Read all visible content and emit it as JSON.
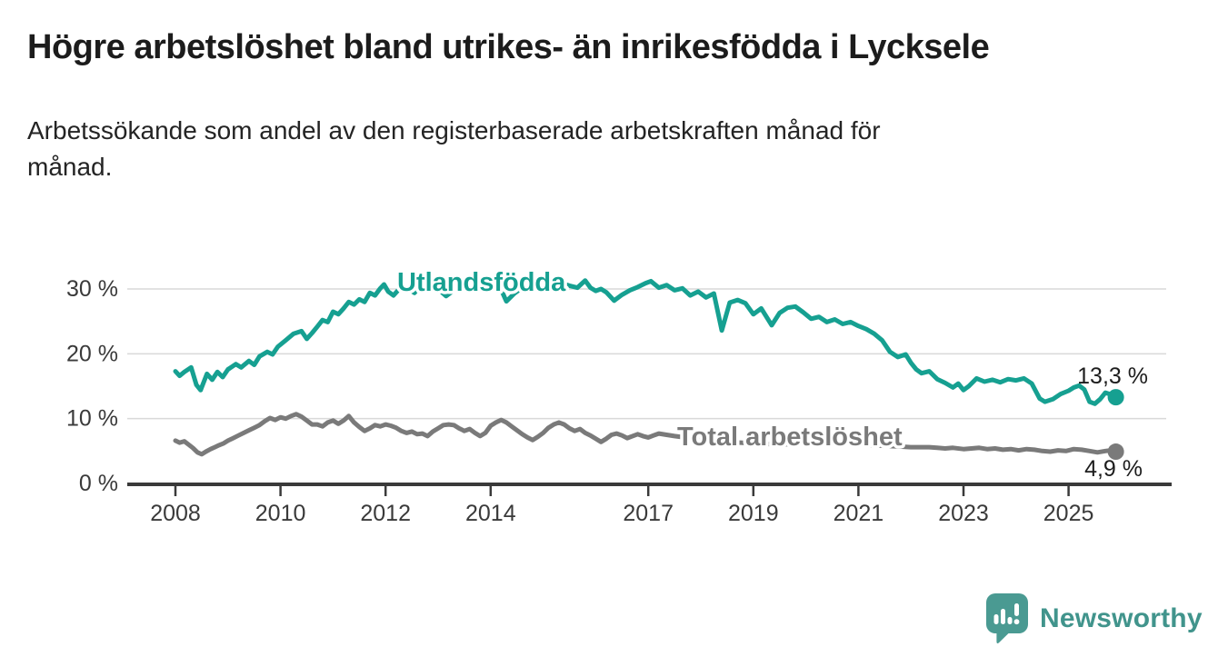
{
  "header": {
    "title": "Högre arbetslöshet bland utrikes- än inrikesfödda i Lycksele",
    "subtitle_lines": [
      "Arbetssökande som andel av den registerbaserade arbetskraften månad för",
      "månad."
    ]
  },
  "footer": {
    "brand": "Newsworthy"
  },
  "colors": {
    "foreign_born_line": "#16a091",
    "total_line": "#7a7a7a",
    "axis": "#3a3a3a",
    "grid": "#d9d9d9",
    "value_label": "#1d1d1d",
    "brand": "#41948c",
    "background": "#ffffff"
  },
  "chart_data": {
    "type": "line",
    "title": "Högre arbetslöshet bland utrikes- än inrikesfödda i Lycksele",
    "subtitle": "Arbetssökande som andel av den registerbaserade arbetskraften månad för månad.",
    "xlabel": "",
    "ylabel": "",
    "grid": "horizontal",
    "x_range": [
      2007.1,
      2026.9
    ],
    "y_range": [
      0,
      35.3
    ],
    "x_ticks": [
      {
        "v": 2008,
        "label": "2008"
      },
      {
        "v": 2010,
        "label": "2010"
      },
      {
        "v": 2012,
        "label": "2012"
      },
      {
        "v": 2014,
        "label": "2014"
      },
      {
        "v": 2017,
        "label": "2017"
      },
      {
        "v": 2019,
        "label": "2019"
      },
      {
        "v": 2021,
        "label": "2021"
      },
      {
        "v": 2023,
        "label": "2023"
      },
      {
        "v": 2025,
        "label": "2025"
      }
    ],
    "y_ticks": [
      {
        "v": 0,
        "label": "0 %"
      },
      {
        "v": 10,
        "label": "10 %"
      },
      {
        "v": 20,
        "label": "20 %"
      },
      {
        "v": 30,
        "label": "30 %"
      }
    ],
    "series": [
      {
        "name": "Utlandsfödda",
        "color": "#16a091",
        "end_value": 13.3,
        "end_label": "13,3 %",
        "points": [
          [
            2008.0,
            17.3
          ],
          [
            2008.08,
            16.6
          ],
          [
            2008.17,
            17.2
          ],
          [
            2008.3,
            17.9
          ],
          [
            2008.4,
            15.2
          ],
          [
            2008.48,
            14.4
          ],
          [
            2008.6,
            16.9
          ],
          [
            2008.7,
            16.0
          ],
          [
            2008.8,
            17.2
          ],
          [
            2008.9,
            16.4
          ],
          [
            2009.0,
            17.6
          ],
          [
            2009.15,
            18.4
          ],
          [
            2009.25,
            17.9
          ],
          [
            2009.4,
            18.9
          ],
          [
            2009.5,
            18.3
          ],
          [
            2009.6,
            19.6
          ],
          [
            2009.75,
            20.3
          ],
          [
            2009.85,
            19.9
          ],
          [
            2009.95,
            21.1
          ],
          [
            2010.1,
            22.1
          ],
          [
            2010.25,
            23.1
          ],
          [
            2010.4,
            23.5
          ],
          [
            2010.5,
            22.3
          ],
          [
            2010.6,
            23.2
          ],
          [
            2010.7,
            24.2
          ],
          [
            2010.8,
            25.2
          ],
          [
            2010.9,
            24.9
          ],
          [
            2011.0,
            26.5
          ],
          [
            2011.1,
            26.1
          ],
          [
            2011.2,
            27.0
          ],
          [
            2011.3,
            28.0
          ],
          [
            2011.4,
            27.6
          ],
          [
            2011.5,
            28.4
          ],
          [
            2011.6,
            28.0
          ],
          [
            2011.7,
            29.4
          ],
          [
            2011.8,
            29.0
          ],
          [
            2011.9,
            30.1
          ],
          [
            2011.97,
            30.7
          ],
          [
            2012.05,
            29.6
          ],
          [
            2012.15,
            29.0
          ],
          [
            2012.25,
            29.9
          ],
          [
            2012.4,
            30.2
          ],
          [
            2012.55,
            29.4
          ],
          [
            2012.7,
            30.9
          ],
          [
            2012.85,
            30.3
          ],
          [
            2013.0,
            30.0
          ],
          [
            2013.15,
            28.9
          ],
          [
            2013.25,
            29.5
          ],
          [
            2013.4,
            30.6
          ],
          [
            2013.55,
            31.0
          ],
          [
            2013.7,
            30.3
          ],
          [
            2013.85,
            29.8
          ],
          [
            2014.0,
            30.4
          ],
          [
            2014.15,
            30.8
          ],
          [
            2014.3,
            28.1
          ],
          [
            2014.45,
            29.3
          ],
          [
            2014.6,
            30.2
          ],
          [
            2014.75,
            30.6
          ],
          [
            2014.9,
            30.1
          ],
          [
            2015.05,
            30.8
          ],
          [
            2015.2,
            30.4
          ],
          [
            2015.35,
            30.9
          ],
          [
            2015.5,
            30.5
          ],
          [
            2015.65,
            30.2
          ],
          [
            2015.8,
            31.3
          ],
          [
            2015.9,
            30.2
          ],
          [
            2016.0,
            29.7
          ],
          [
            2016.1,
            30.0
          ],
          [
            2016.2,
            29.5
          ],
          [
            2016.35,
            28.2
          ],
          [
            2016.5,
            29.1
          ],
          [
            2016.65,
            29.8
          ],
          [
            2016.8,
            30.3
          ],
          [
            2016.95,
            30.9
          ],
          [
            2017.05,
            31.2
          ],
          [
            2017.2,
            30.2
          ],
          [
            2017.35,
            30.6
          ],
          [
            2017.5,
            29.8
          ],
          [
            2017.65,
            30.1
          ],
          [
            2017.8,
            29.0
          ],
          [
            2017.95,
            29.6
          ],
          [
            2018.1,
            28.7
          ],
          [
            2018.25,
            29.3
          ],
          [
            2018.4,
            23.6
          ],
          [
            2018.55,
            27.9
          ],
          [
            2018.7,
            28.3
          ],
          [
            2018.85,
            27.8
          ],
          [
            2019.0,
            26.1
          ],
          [
            2019.15,
            27.0
          ],
          [
            2019.35,
            24.4
          ],
          [
            2019.5,
            26.3
          ],
          [
            2019.65,
            27.1
          ],
          [
            2019.8,
            27.3
          ],
          [
            2019.95,
            26.4
          ],
          [
            2020.1,
            25.4
          ],
          [
            2020.25,
            25.7
          ],
          [
            2020.4,
            24.9
          ],
          [
            2020.55,
            25.3
          ],
          [
            2020.7,
            24.6
          ],
          [
            2020.85,
            24.9
          ],
          [
            2021.0,
            24.3
          ],
          [
            2021.15,
            23.8
          ],
          [
            2021.3,
            23.1
          ],
          [
            2021.45,
            22.1
          ],
          [
            2021.6,
            20.3
          ],
          [
            2021.75,
            19.5
          ],
          [
            2021.9,
            19.9
          ],
          [
            2022.0,
            18.6
          ],
          [
            2022.1,
            17.6
          ],
          [
            2022.2,
            17.0
          ],
          [
            2022.35,
            17.3
          ],
          [
            2022.5,
            16.1
          ],
          [
            2022.65,
            15.5
          ],
          [
            2022.8,
            14.8
          ],
          [
            2022.9,
            15.4
          ],
          [
            2023.0,
            14.4
          ],
          [
            2023.1,
            15.0
          ],
          [
            2023.25,
            16.2
          ],
          [
            2023.4,
            15.7
          ],
          [
            2023.55,
            16.0
          ],
          [
            2023.7,
            15.6
          ],
          [
            2023.85,
            16.1
          ],
          [
            2024.0,
            15.9
          ],
          [
            2024.15,
            16.2
          ],
          [
            2024.3,
            15.4
          ],
          [
            2024.45,
            13.1
          ],
          [
            2024.55,
            12.6
          ],
          [
            2024.7,
            13.0
          ],
          [
            2024.85,
            13.8
          ],
          [
            2025.0,
            14.3
          ],
          [
            2025.1,
            14.8
          ],
          [
            2025.2,
            15.1
          ],
          [
            2025.3,
            14.5
          ],
          [
            2025.4,
            12.6
          ],
          [
            2025.5,
            12.3
          ],
          [
            2025.6,
            13.0
          ],
          [
            2025.7,
            14.0
          ],
          [
            2025.78,
            13.8
          ],
          [
            2025.85,
            13.1
          ],
          [
            2025.9,
            13.3
          ]
        ]
      },
      {
        "name": "Total arbetslöshet",
        "color": "#7a7a7a",
        "end_value": 4.9,
        "end_label": "4,9 %",
        "points": [
          [
            2008.0,
            6.6
          ],
          [
            2008.08,
            6.3
          ],
          [
            2008.17,
            6.5
          ],
          [
            2008.25,
            6.0
          ],
          [
            2008.33,
            5.5
          ],
          [
            2008.42,
            4.8
          ],
          [
            2008.5,
            4.5
          ],
          [
            2008.58,
            4.9
          ],
          [
            2008.67,
            5.3
          ],
          [
            2008.75,
            5.6
          ],
          [
            2008.83,
            5.9
          ],
          [
            2008.92,
            6.2
          ],
          [
            2009.0,
            6.6
          ],
          [
            2009.1,
            7.0
          ],
          [
            2009.2,
            7.4
          ],
          [
            2009.3,
            7.8
          ],
          [
            2009.4,
            8.2
          ],
          [
            2009.5,
            8.6
          ],
          [
            2009.6,
            9.0
          ],
          [
            2009.7,
            9.6
          ],
          [
            2009.8,
            10.1
          ],
          [
            2009.9,
            9.8
          ],
          [
            2010.0,
            10.2
          ],
          [
            2010.1,
            10.0
          ],
          [
            2010.2,
            10.4
          ],
          [
            2010.3,
            10.7
          ],
          [
            2010.4,
            10.3
          ],
          [
            2010.5,
            9.7
          ],
          [
            2010.6,
            9.1
          ],
          [
            2010.7,
            9.1
          ],
          [
            2010.8,
            8.8
          ],
          [
            2010.9,
            9.4
          ],
          [
            2011.0,
            9.7
          ],
          [
            2011.1,
            9.2
          ],
          [
            2011.2,
            9.7
          ],
          [
            2011.3,
            10.4
          ],
          [
            2011.4,
            9.4
          ],
          [
            2011.5,
            8.7
          ],
          [
            2011.6,
            8.1
          ],
          [
            2011.7,
            8.5
          ],
          [
            2011.8,
            9.0
          ],
          [
            2011.9,
            8.8
          ],
          [
            2012.0,
            9.1
          ],
          [
            2012.1,
            8.9
          ],
          [
            2012.2,
            8.6
          ],
          [
            2012.3,
            8.1
          ],
          [
            2012.4,
            7.8
          ],
          [
            2012.5,
            8.0
          ],
          [
            2012.6,
            7.6
          ],
          [
            2012.7,
            7.7
          ],
          [
            2012.8,
            7.3
          ],
          [
            2012.9,
            8.0
          ],
          [
            2013.0,
            8.5
          ],
          [
            2013.1,
            9.0
          ],
          [
            2013.2,
            9.1
          ],
          [
            2013.3,
            9.0
          ],
          [
            2013.4,
            8.5
          ],
          [
            2013.5,
            8.1
          ],
          [
            2013.6,
            8.4
          ],
          [
            2013.7,
            7.8
          ],
          [
            2013.8,
            7.3
          ],
          [
            2013.9,
            7.8
          ],
          [
            2014.0,
            8.9
          ],
          [
            2014.1,
            9.4
          ],
          [
            2014.2,
            9.8
          ],
          [
            2014.3,
            9.4
          ],
          [
            2014.4,
            8.8
          ],
          [
            2014.5,
            8.2
          ],
          [
            2014.6,
            7.6
          ],
          [
            2014.7,
            7.1
          ],
          [
            2014.8,
            6.7
          ],
          [
            2014.9,
            7.2
          ],
          [
            2015.0,
            7.8
          ],
          [
            2015.1,
            8.6
          ],
          [
            2015.2,
            9.1
          ],
          [
            2015.3,
            9.4
          ],
          [
            2015.4,
            9.1
          ],
          [
            2015.5,
            8.5
          ],
          [
            2015.6,
            8.1
          ],
          [
            2015.7,
            8.4
          ],
          [
            2015.8,
            7.8
          ],
          [
            2015.9,
            7.4
          ],
          [
            2016.0,
            6.9
          ],
          [
            2016.1,
            6.4
          ],
          [
            2016.2,
            6.9
          ],
          [
            2016.3,
            7.5
          ],
          [
            2016.4,
            7.7
          ],
          [
            2016.5,
            7.4
          ],
          [
            2016.6,
            7.0
          ],
          [
            2016.7,
            7.3
          ],
          [
            2016.8,
            7.6
          ],
          [
            2016.9,
            7.3
          ],
          [
            2017.0,
            7.1
          ],
          [
            2017.1,
            7.4
          ],
          [
            2017.2,
            7.7
          ],
          [
            2017.35,
            7.5
          ],
          [
            2017.5,
            7.3
          ],
          [
            2017.6,
            7.2
          ],
          [
            2017.75,
            7.0
          ],
          [
            2018.0,
            6.8
          ],
          [
            2018.25,
            6.6
          ],
          [
            2018.5,
            6.4
          ],
          [
            2018.75,
            6.3
          ],
          [
            2019.0,
            6.2
          ],
          [
            2019.25,
            6.1
          ],
          [
            2019.5,
            6.0
          ],
          [
            2019.75,
            6.1
          ],
          [
            2020.0,
            6.3
          ],
          [
            2020.25,
            6.6
          ],
          [
            2020.5,
            6.5
          ],
          [
            2020.75,
            6.3
          ],
          [
            2021.0,
            6.1
          ],
          [
            2021.25,
            5.9
          ],
          [
            2021.5,
            5.8
          ],
          [
            2021.75,
            5.7
          ],
          [
            2022.0,
            5.6
          ],
          [
            2022.2,
            5.6
          ],
          [
            2022.35,
            5.6
          ],
          [
            2022.5,
            5.5
          ],
          [
            2022.65,
            5.4
          ],
          [
            2022.8,
            5.5
          ],
          [
            2023.0,
            5.3
          ],
          [
            2023.15,
            5.4
          ],
          [
            2023.3,
            5.5
          ],
          [
            2023.45,
            5.3
          ],
          [
            2023.6,
            5.4
          ],
          [
            2023.75,
            5.2
          ],
          [
            2023.9,
            5.3
          ],
          [
            2024.05,
            5.1
          ],
          [
            2024.2,
            5.3
          ],
          [
            2024.35,
            5.2
          ],
          [
            2024.5,
            5.0
          ],
          [
            2024.65,
            4.9
          ],
          [
            2024.8,
            5.1
          ],
          [
            2024.95,
            5.0
          ],
          [
            2025.1,
            5.3
          ],
          [
            2025.25,
            5.2
          ],
          [
            2025.4,
            5.0
          ],
          [
            2025.55,
            4.8
          ],
          [
            2025.7,
            5.0
          ],
          [
            2025.8,
            5.1
          ],
          [
            2025.9,
            4.9
          ]
        ]
      }
    ],
    "legend_position": "inline-labels"
  }
}
